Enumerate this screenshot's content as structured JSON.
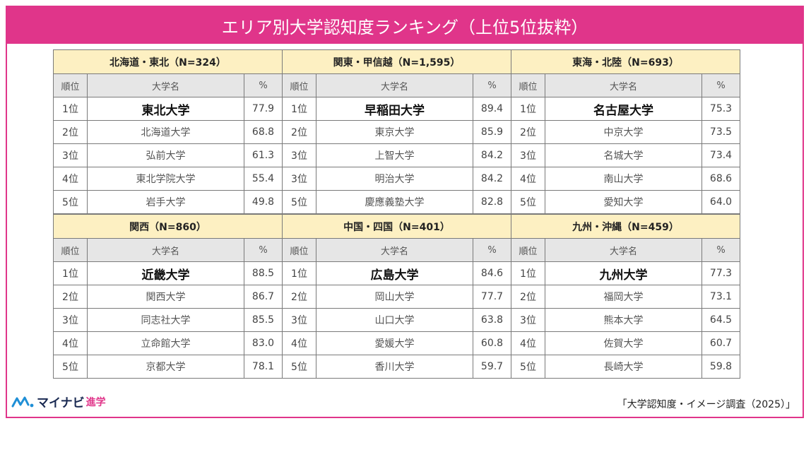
{
  "title": "エリア別大学認知度ランキング（上位5位抜粋）",
  "column_headers": {
    "rank": "順位",
    "name": "大学名",
    "pct": "%"
  },
  "regions": [
    {
      "label": "北海道・東北（N=324）",
      "rows": [
        {
          "rank": "1位",
          "name": "東北大学",
          "pct": "77.9"
        },
        {
          "rank": "2位",
          "name": "北海道大学",
          "pct": "68.8"
        },
        {
          "rank": "3位",
          "name": "弘前大学",
          "pct": "61.3"
        },
        {
          "rank": "4位",
          "name": "東北学院大学",
          "pct": "55.4"
        },
        {
          "rank": "5位",
          "name": "岩手大学",
          "pct": "49.8"
        }
      ]
    },
    {
      "label": "関東・甲信越（N=1,595）",
      "rows": [
        {
          "rank": "1位",
          "name": "早稲田大学",
          "pct": "89.4"
        },
        {
          "rank": "2位",
          "name": "東京大学",
          "pct": "85.9"
        },
        {
          "rank": "3位",
          "name": "上智大学",
          "pct": "84.2"
        },
        {
          "rank": "3位",
          "name": "明治大学",
          "pct": "84.2"
        },
        {
          "rank": "5位",
          "name": "慶應義塾大学",
          "pct": "82.8"
        }
      ]
    },
    {
      "label": "東海・北陸（N=693）",
      "rows": [
        {
          "rank": "1位",
          "name": "名古屋大学",
          "pct": "75.3"
        },
        {
          "rank": "2位",
          "name": "中京大学",
          "pct": "73.5"
        },
        {
          "rank": "3位",
          "name": "名城大学",
          "pct": "73.4"
        },
        {
          "rank": "4位",
          "name": "南山大学",
          "pct": "68.6"
        },
        {
          "rank": "5位",
          "name": "愛知大学",
          "pct": "64.0"
        }
      ]
    },
    {
      "label": "関西（N=860）",
      "rows": [
        {
          "rank": "1位",
          "name": "近畿大学",
          "pct": "88.5"
        },
        {
          "rank": "2位",
          "name": "関西大学",
          "pct": "86.7"
        },
        {
          "rank": "3位",
          "name": "同志社大学",
          "pct": "85.5"
        },
        {
          "rank": "4位",
          "name": "立命館大学",
          "pct": "83.0"
        },
        {
          "rank": "5位",
          "name": "京都大学",
          "pct": "78.1"
        }
      ]
    },
    {
      "label": "中国・四国（N=401）",
      "rows": [
        {
          "rank": "1位",
          "name": "広島大学",
          "pct": "84.6"
        },
        {
          "rank": "2位",
          "name": "岡山大学",
          "pct": "77.7"
        },
        {
          "rank": "3位",
          "name": "山口大学",
          "pct": "63.8"
        },
        {
          "rank": "4位",
          "name": "愛媛大学",
          "pct": "60.8"
        },
        {
          "rank": "5位",
          "name": "香川大学",
          "pct": "59.7"
        }
      ]
    },
    {
      "label": "九州・沖縄（N=459）",
      "rows": [
        {
          "rank": "1位",
          "name": "九州大学",
          "pct": "77.3"
        },
        {
          "rank": "2位",
          "name": "福岡大学",
          "pct": "73.1"
        },
        {
          "rank": "3位",
          "name": "熊本大学",
          "pct": "64.5"
        },
        {
          "rank": "4位",
          "name": "佐賀大学",
          "pct": "60.7"
        },
        {
          "rank": "5位",
          "name": "長崎大学",
          "pct": "59.8"
        }
      ]
    }
  ],
  "logo": {
    "name": "マイナビ",
    "sub": "進学"
  },
  "source": "「大学認知度・イメージ調査（2025）」",
  "colors": {
    "accent": "#e0358a",
    "region_header_bg": "#fdf0c2",
    "column_header_bg": "#e6e6e6",
    "logo_navy": "#1a2a52"
  }
}
